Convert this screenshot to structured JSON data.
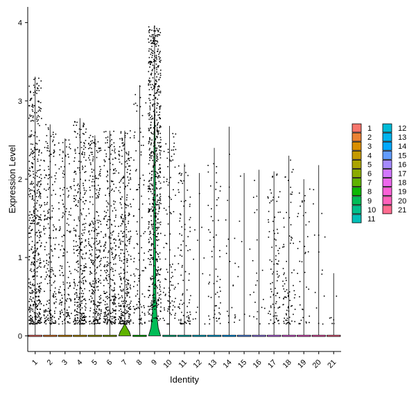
{
  "chart_data": {
    "type": "violin",
    "title": "",
    "xlabel": "Identity",
    "ylabel": "Expression Level",
    "ylim": [
      -0.2,
      4.2
    ],
    "yticks": [
      0,
      1,
      2,
      3,
      4
    ],
    "grid": false,
    "legend_position": "right",
    "categories": [
      "1",
      "2",
      "3",
      "4",
      "5",
      "6",
      "7",
      "8",
      "9",
      "10",
      "11",
      "12",
      "13",
      "14",
      "15",
      "16",
      "17",
      "18",
      "19",
      "20",
      "21"
    ],
    "colors": [
      "#F8766D",
      "#EB8335",
      "#DA8F00",
      "#C49A00",
      "#AAA400",
      "#8AAB00",
      "#5FB200",
      "#0CB702",
      "#00BC56",
      "#00C08B",
      "#00C0B8",
      "#00BCD8",
      "#00B4EF",
      "#00A9FF",
      "#619CFF",
      "#A58AFF",
      "#D277FF",
      "#ED68ED",
      "#FB61D7",
      "#FF62BC",
      "#FF6C91"
    ],
    "series": [
      {
        "name": "1",
        "max": 3.31,
        "median": 0,
        "points": 480
      },
      {
        "name": "2",
        "max": 2.7,
        "median": 0,
        "points": 220
      },
      {
        "name": "3",
        "max": 2.52,
        "median": 0,
        "points": 160
      },
      {
        "name": "4",
        "max": 2.78,
        "median": 0,
        "points": 320
      },
      {
        "name": "5",
        "max": 2.56,
        "median": 0,
        "points": 300
      },
      {
        "name": "6",
        "max": 2.62,
        "median": 0,
        "points": 300
      },
      {
        "name": "7",
        "max": 2.62,
        "median": 0.06,
        "points": 320
      },
      {
        "name": "8",
        "max": 3.2,
        "median": 0,
        "points": 110
      },
      {
        "name": "9",
        "max": 3.96,
        "median": 0.25,
        "points": 620
      },
      {
        "name": "10",
        "max": 2.68,
        "median": 0,
        "points": 100
      },
      {
        "name": "11",
        "max": 2.2,
        "median": 0,
        "points": 100
      },
      {
        "name": "12",
        "max": 2.08,
        "median": 0,
        "points": 12
      },
      {
        "name": "13",
        "max": 2.4,
        "median": 0,
        "points": 60
      },
      {
        "name": "14",
        "max": 2.67,
        "median": 0,
        "points": 20
      },
      {
        "name": "15",
        "max": 2.08,
        "median": 0,
        "points": 10
      },
      {
        "name": "16",
        "max": 2.12,
        "median": 0,
        "points": 20
      },
      {
        "name": "17",
        "max": 2.1,
        "median": 0,
        "points": 90
      },
      {
        "name": "18",
        "max": 2.3,
        "median": 0,
        "points": 80
      },
      {
        "name": "19",
        "max": 2.0,
        "median": 0,
        "points": 40
      },
      {
        "name": "20",
        "max": 2.18,
        "median": 0,
        "points": 14
      },
      {
        "name": "21",
        "max": 0.8,
        "median": 0,
        "points": 6
      }
    ]
  }
}
